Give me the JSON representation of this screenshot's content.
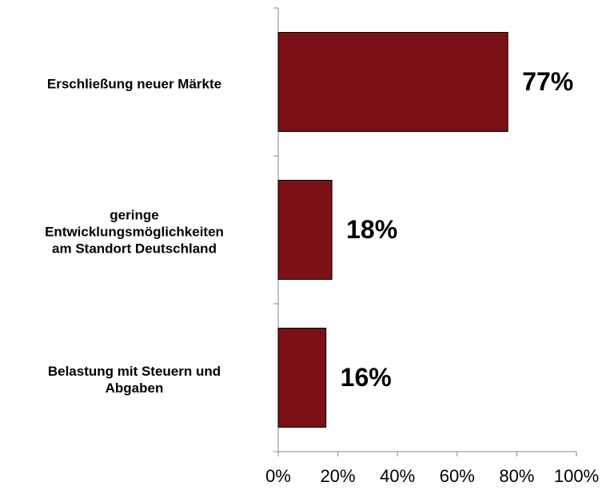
{
  "chart_data": {
    "type": "barh",
    "categories": [
      "Erschließung neuer Märkte",
      "geringe\nEntwicklungsmöglichkeiten\nam Standort Deutschland",
      "Belastung mit Steuern und\nAbgaben"
    ],
    "values": [
      77,
      18,
      16
    ],
    "value_labels": [
      "77%",
      "18%",
      "16%"
    ],
    "color": "#7b1116",
    "xlim": [
      0,
      100
    ],
    "xticks": [
      {
        "value": 0,
        "label": "0%"
      },
      {
        "value": 20,
        "label": "20%"
      },
      {
        "value": 40,
        "label": "40%"
      },
      {
        "value": 60,
        "label": "60%"
      },
      {
        "value": 80,
        "label": "80%"
      },
      {
        "value": 100,
        "label": "100%"
      }
    ]
  }
}
